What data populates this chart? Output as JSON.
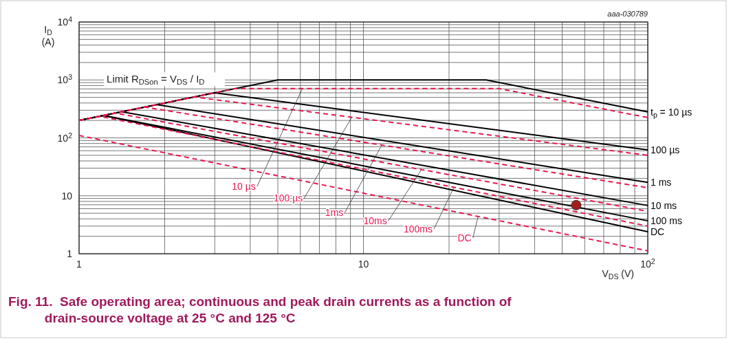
{
  "chart_data": {
    "type": "line",
    "title": "Fig. 11.  Safe operating area; continuous and peak drain currents as a function of drain-source voltage at 25 °C and 125 °C",
    "xlabel": "V$_{DS}$ (V)",
    "ylabel": "I$_{D}$ (A)",
    "annotations": [
      "aaa-030789",
      "Limit R$_{DSon}$ = V$_{DS}$ / I$_{D}$"
    ],
    "log": "xy",
    "grid": true,
    "xlim": [
      1,
      100
    ],
    "ylim": [
      1,
      10000
    ],
    "xticks": [
      1,
      10,
      {
        "value": 100,
        "label": "10$^{2}$"
      }
    ],
    "yticks": [
      1,
      10,
      {
        "value": 100,
        "label": "10$^{2}$"
      },
      {
        "value": 1000,
        "label": "10$^{3}$"
      },
      {
        "value": 10000,
        "label": "10$^{4}$"
      }
    ],
    "series": [
      {
        "name": "t$_{p}$ = 10 µs",
        "color": "#000000",
        "line_style": "solid",
        "x": [
          1,
          5,
          27,
          100
        ],
        "values": [
          200,
          1000,
          1000,
          280
        ]
      },
      {
        "name": "100 µs",
        "color": "#000000",
        "line_style": "solid",
        "x": [
          1,
          3,
          100
        ],
        "values": [
          200,
          600,
          62
        ]
      },
      {
        "name": "1 ms",
        "color": "#000000",
        "line_style": "solid",
        "x": [
          1,
          1.88,
          100
        ],
        "values": [
          200,
          375,
          17
        ]
      },
      {
        "name": "10 ms",
        "color": "#000000",
        "line_style": "solid",
        "x": [
          1,
          1.41,
          100
        ],
        "values": [
          200,
          283,
          6.8
        ]
      },
      {
        "name": "100 ms",
        "color": "#000000",
        "line_style": "solid",
        "x": [
          1,
          1.22,
          100
        ],
        "values": [
          200,
          243,
          3.7
        ]
      },
      {
        "name": "DC",
        "color": "#000000",
        "line_style": "solid",
        "x": [
          1,
          1.22,
          100
        ],
        "values": [
          200,
          243,
          2.4
        ]
      },
      {
        "name": "10 µs",
        "color": "#e8174f",
        "line_style": "dashed",
        "x": [
          1,
          3.55,
          30,
          100
        ],
        "values": [
          200,
          710,
          710,
          224
        ]
      },
      {
        "name": "100 µs",
        "color": "#e8174f",
        "line_style": "dashed",
        "x": [
          1,
          2.54,
          100
        ],
        "values": [
          200,
          508,
          50
        ]
      },
      {
        "name": "1ms",
        "color": "#e8174f",
        "line_style": "dashed",
        "x": [
          1,
          1.7,
          100
        ],
        "values": [
          200,
          340,
          13.8
        ]
      },
      {
        "name": "10ms",
        "color": "#e8174f",
        "line_style": "dashed",
        "x": [
          1,
          1.34,
          100
        ],
        "values": [
          200,
          268,
          5.4
        ]
      },
      {
        "name": "100ms",
        "color": "#e8174f",
        "line_style": "dashed",
        "x": [
          1,
          1.18,
          100
        ],
        "values": [
          200,
          236,
          3
        ]
      },
      {
        "name": "DC",
        "color": "#e8174f",
        "line_style": "dashed",
        "x": [
          1,
          100
        ],
        "values": [
          110,
          1.12
        ]
      },
      {
        "type": "scatter",
        "color": "#a51c1c",
        "marker": "circle",
        "x": [
          56
        ],
        "values": [
          6.9
        ]
      }
    ]
  }
}
